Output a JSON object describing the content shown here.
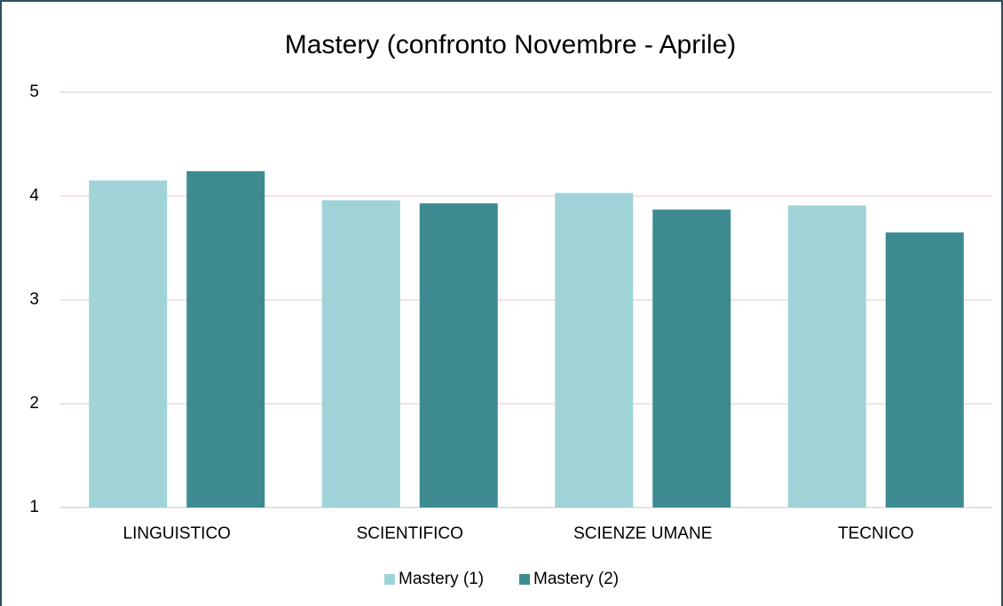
{
  "chart_data": {
    "type": "bar",
    "title": "Mastery (confronto Novembre - Aprile)",
    "categories": [
      "LINGUISTICO",
      "SCIENTIFICO",
      "SCIENZE UMANE",
      "TECNICO"
    ],
    "series": [
      {
        "name": "Mastery (1)",
        "color": "#a0d3d8",
        "values": [
          4.15,
          3.96,
          4.03,
          3.91
        ]
      },
      {
        "name": "Mastery (2)",
        "color": "#3d8b91",
        "values": [
          4.24,
          3.93,
          3.87,
          3.65
        ]
      }
    ],
    "ylim": [
      1,
      5
    ],
    "yticks": [
      1,
      2,
      3,
      4,
      5
    ],
    "grid": true,
    "legend": "bottom"
  }
}
